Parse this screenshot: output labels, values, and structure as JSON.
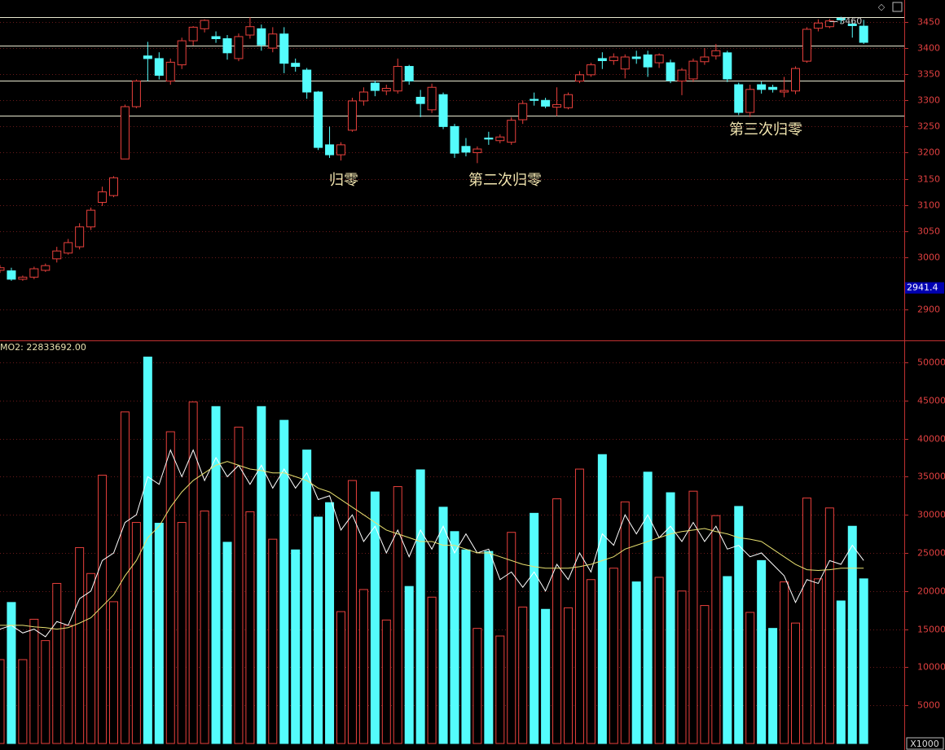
{
  "chart_data": [
    {
      "type": "candlestick",
      "open": [
        2975,
        2974,
        2958,
        2962,
        2975,
        2997,
        3008,
        3020,
        3058,
        3105,
        3118,
        3188,
        3288,
        3385,
        3380,
        3337,
        3368,
        3414,
        3437,
        3422,
        3418,
        3380,
        3425,
        3437,
        3400,
        3427,
        3371,
        3358,
        3316,
        3215,
        3196,
        3243,
        3299,
        3333,
        3318,
        3318,
        3365,
        3306,
        3282,
        3311,
        3250,
        3212,
        3200,
        3228,
        3223,
        3220,
        3263,
        3302,
        3300,
        3287,
        3286,
        3337,
        3349,
        3380,
        3376,
        3360,
        3383,
        3387,
        3372,
        3372,
        3337,
        3341,
        3374,
        3385,
        3391,
        3330,
        3277,
        3330,
        3325,
        3316,
        3318,
        3375,
        3438,
        3441,
        3457,
        3446,
        3442
      ],
      "high": [
        2985,
        2980,
        2965,
        2982,
        2988,
        3020,
        3035,
        3065,
        3095,
        3135,
        3155,
        3292,
        3340,
        3412,
        3392,
        3380,
        3420,
        3442,
        3455,
        3432,
        3425,
        3428,
        3458.79,
        3445,
        3440,
        3440,
        3380,
        3362,
        3318,
        3250,
        3220,
        3305,
        3325,
        3338,
        3330,
        3380,
        3368,
        3320,
        3332,
        3315,
        3255,
        3228,
        3212,
        3240,
        3235,
        3268,
        3300,
        3315,
        3305,
        3325,
        3315,
        3356,
        3372,
        3392,
        3390,
        3388,
        3395,
        3395,
        3390,
        3378,
        3362,
        3380,
        3400,
        3408,
        3395,
        3334,
        3330,
        3336,
        3330,
        3345,
        3365,
        3440,
        3455,
        3456,
        3460,
        3452,
        3454
      ],
      "low": [
        2970,
        2955,
        2955,
        2958,
        2972,
        2990,
        3005,
        3015,
        3052,
        3098,
        3115,
        3188,
        3285,
        3337,
        3340,
        3330,
        3360,
        3405,
        3430,
        3410,
        3378,
        3375,
        3418,
        3395,
        3392,
        3352,
        3355,
        3303,
        3205,
        3190,
        3185,
        3240,
        3290,
        3308,
        3310,
        3313,
        3330,
        3268,
        3276,
        3245,
        3190,
        3193,
        3180,
        3215,
        3218,
        3215,
        3255,
        3290,
        3285,
        3270,
        3283,
        3333,
        3345,
        3360,
        3368,
        3342,
        3370,
        3345,
        3362,
        3333,
        3310,
        3335,
        3368,
        3378,
        3335,
        3272,
        3268,
        3313,
        3315,
        3306,
        3312,
        3372,
        3432,
        3438,
        3448,
        3420,
        3408
      ],
      "close": [
        2980,
        2958,
        2962,
        2978,
        2984,
        3012,
        3028,
        3058,
        3090,
        3125,
        3152,
        3288,
        3337,
        3380,
        3348,
        3373,
        3414,
        3440,
        3453,
        3418,
        3391,
        3422,
        3441,
        3406,
        3427,
        3371,
        3365,
        3316,
        3210,
        3196,
        3215,
        3299,
        3316,
        3319,
        3323,
        3365,
        3337,
        3294,
        3325,
        3250,
        3199,
        3201,
        3207,
        3226,
        3230,
        3262,
        3294,
        3300,
        3289,
        3292,
        3311,
        3349,
        3368,
        3376,
        3383,
        3383,
        3380,
        3364,
        3387,
        3338,
        3358,
        3375,
        3383,
        3395,
        3341,
        3277,
        3321,
        3321,
        3321,
        3319,
        3361,
        3436,
        3448,
        3452,
        3454,
        3443,
        3411
      ],
      "up_color": "#e8403c",
      "down_color": "#54fcfc",
      "ylim": [
        2841,
        3492
      ],
      "yticks": [
        2900,
        3000,
        3050,
        3100,
        3150,
        3200,
        3250,
        3300,
        3350,
        3400,
        3450
      ],
      "hlines": [
        3459,
        3405,
        3338,
        3271
      ],
      "marker": 2941.4,
      "annotations": [
        "归零",
        "第二次归零",
        "第三次归零"
      ]
    },
    {
      "type": "bar",
      "title": "MO2: 22833692.00",
      "values": [
        11000,
        18500,
        11000,
        16300,
        13500,
        21000,
        15500,
        25700,
        22300,
        35200,
        18600,
        43500,
        29000,
        50700,
        28900,
        40900,
        29000,
        44800,
        30500,
        44200,
        26400,
        41500,
        30400,
        44200,
        26800,
        42400,
        25400,
        38500,
        29700,
        31600,
        17300,
        34500,
        20200,
        33000,
        16200,
        33700,
        20600,
        35900,
        19200,
        31000,
        27800,
        25400,
        15100,
        25200,
        14100,
        27700,
        17900,
        30200,
        17600,
        32100,
        17800,
        36000,
        21500,
        37900,
        23000,
        31700,
        21200,
        35600,
        21800,
        32900,
        20000,
        33100,
        18100,
        29900,
        21900,
        31100,
        17200,
        24000,
        15100,
        21200,
        15800,
        32200,
        21600,
        30900,
        18700,
        28500,
        21600
      ],
      "series": [
        {
          "color": "#ffffff",
          "values": [
            15000,
            15500,
            14500,
            15000,
            14000,
            16000,
            15500,
            19000,
            20000,
            24000,
            25000,
            29000,
            30000,
            35000,
            34000,
            38500,
            35000,
            38500,
            34500,
            37500,
            35000,
            36500,
            34000,
            36500,
            33500,
            36000,
            33500,
            35500,
            32000,
            32500,
            28000,
            30000,
            26500,
            28500,
            25000,
            28000,
            24500,
            28000,
            25500,
            28500,
            25000,
            27500,
            25000,
            25500,
            21500,
            22500,
            20500,
            22500,
            20000,
            23500,
            21500,
            25000,
            22500,
            27500,
            26000,
            30000,
            27500,
            30000,
            27000,
            28500,
            26500,
            29000,
            26500,
            28500,
            25500,
            26000,
            24500,
            25000,
            23500,
            22000,
            18500,
            21500,
            21000,
            24000,
            23500,
            26000,
            24000
          ]
        },
        {
          "color": "#e8e070",
          "values": [
            15500,
            15500,
            15500,
            15300,
            15200,
            15000,
            15200,
            15800,
            16500,
            18000,
            19500,
            22000,
            24000,
            27000,
            28500,
            31000,
            33000,
            34500,
            35500,
            36500,
            37000,
            36500,
            36000,
            35800,
            35500,
            35500,
            35000,
            34500,
            33500,
            33000,
            32000,
            31000,
            30000,
            29000,
            28000,
            27500,
            27000,
            26500,
            26500,
            26000,
            26000,
            25500,
            25000,
            25000,
            24500,
            24000,
            23500,
            23200,
            23000,
            23000,
            23000,
            23200,
            23500,
            24000,
            24500,
            25500,
            26000,
            26500,
            27000,
            27500,
            27800,
            28000,
            28200,
            27800,
            27500,
            27000,
            26800,
            26500,
            25500,
            24500,
            23500,
            22800,
            22700,
            22800,
            23000,
            23000,
            23000
          ]
        }
      ],
      "ylim": [
        0,
        52670
      ],
      "yticks": [
        5000,
        10000,
        15000,
        20000,
        25000,
        30000,
        35000,
        40000,
        45000,
        50000
      ],
      "unit_label": "X1000"
    }
  ]
}
